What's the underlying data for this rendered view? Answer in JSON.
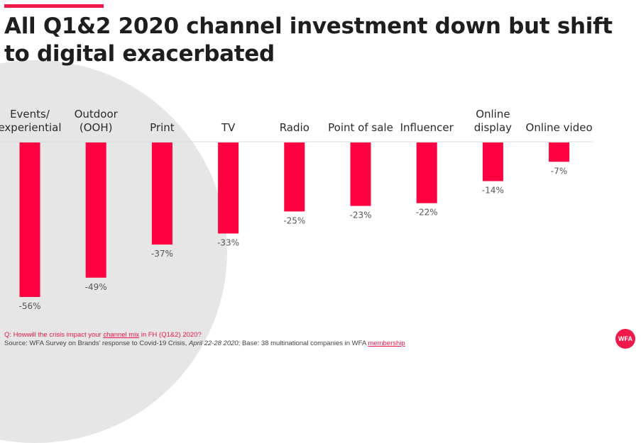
{
  "page": {
    "title": "All Q1&2 2020 channel investment down but shift to digital exacerbated",
    "accent_color": "#f0194a",
    "footer": {
      "question_prefix": "Q: Howwill the crisis impact your ",
      "question_link": "channel mix",
      "question_suffix": " in FH (Q1&2) 2020?",
      "source_prefix": "Source: WFA Survey on Brands’ response to Covid-19 Crisis, ",
      "source_date": "April 22-28 2020",
      "source_middle": "; Base: 38 multinational companies in WFA ",
      "source_link": "membership"
    },
    "logo_text": "WFA"
  },
  "chart_data": {
    "type": "bar",
    "title": "All Q1&2 2020 channel investment down but shift to digital exacerbated",
    "xlabel": "",
    "ylabel": "",
    "categories": [
      [
        "Events/",
        "experiential"
      ],
      [
        "Outdoor",
        "(OOH)"
      ],
      [
        "Print"
      ],
      [
        "TV"
      ],
      [
        "Radio"
      ],
      [
        "Point of sale"
      ],
      [
        "Influencer"
      ],
      [
        "Online",
        "display"
      ],
      [
        "Online video"
      ]
    ],
    "values": [
      -56,
      -49,
      -37,
      -33,
      -25,
      -23,
      -22,
      -14,
      -7
    ],
    "value_labels": [
      "-56%",
      "-49%",
      "-37%",
      "-33%",
      "-25%",
      "-23%",
      "-22%",
      "-14%",
      "-7%"
    ],
    "ylim": [
      -60,
      0
    ],
    "grid": false,
    "bar_color": "#ff0040",
    "legend": "none"
  }
}
